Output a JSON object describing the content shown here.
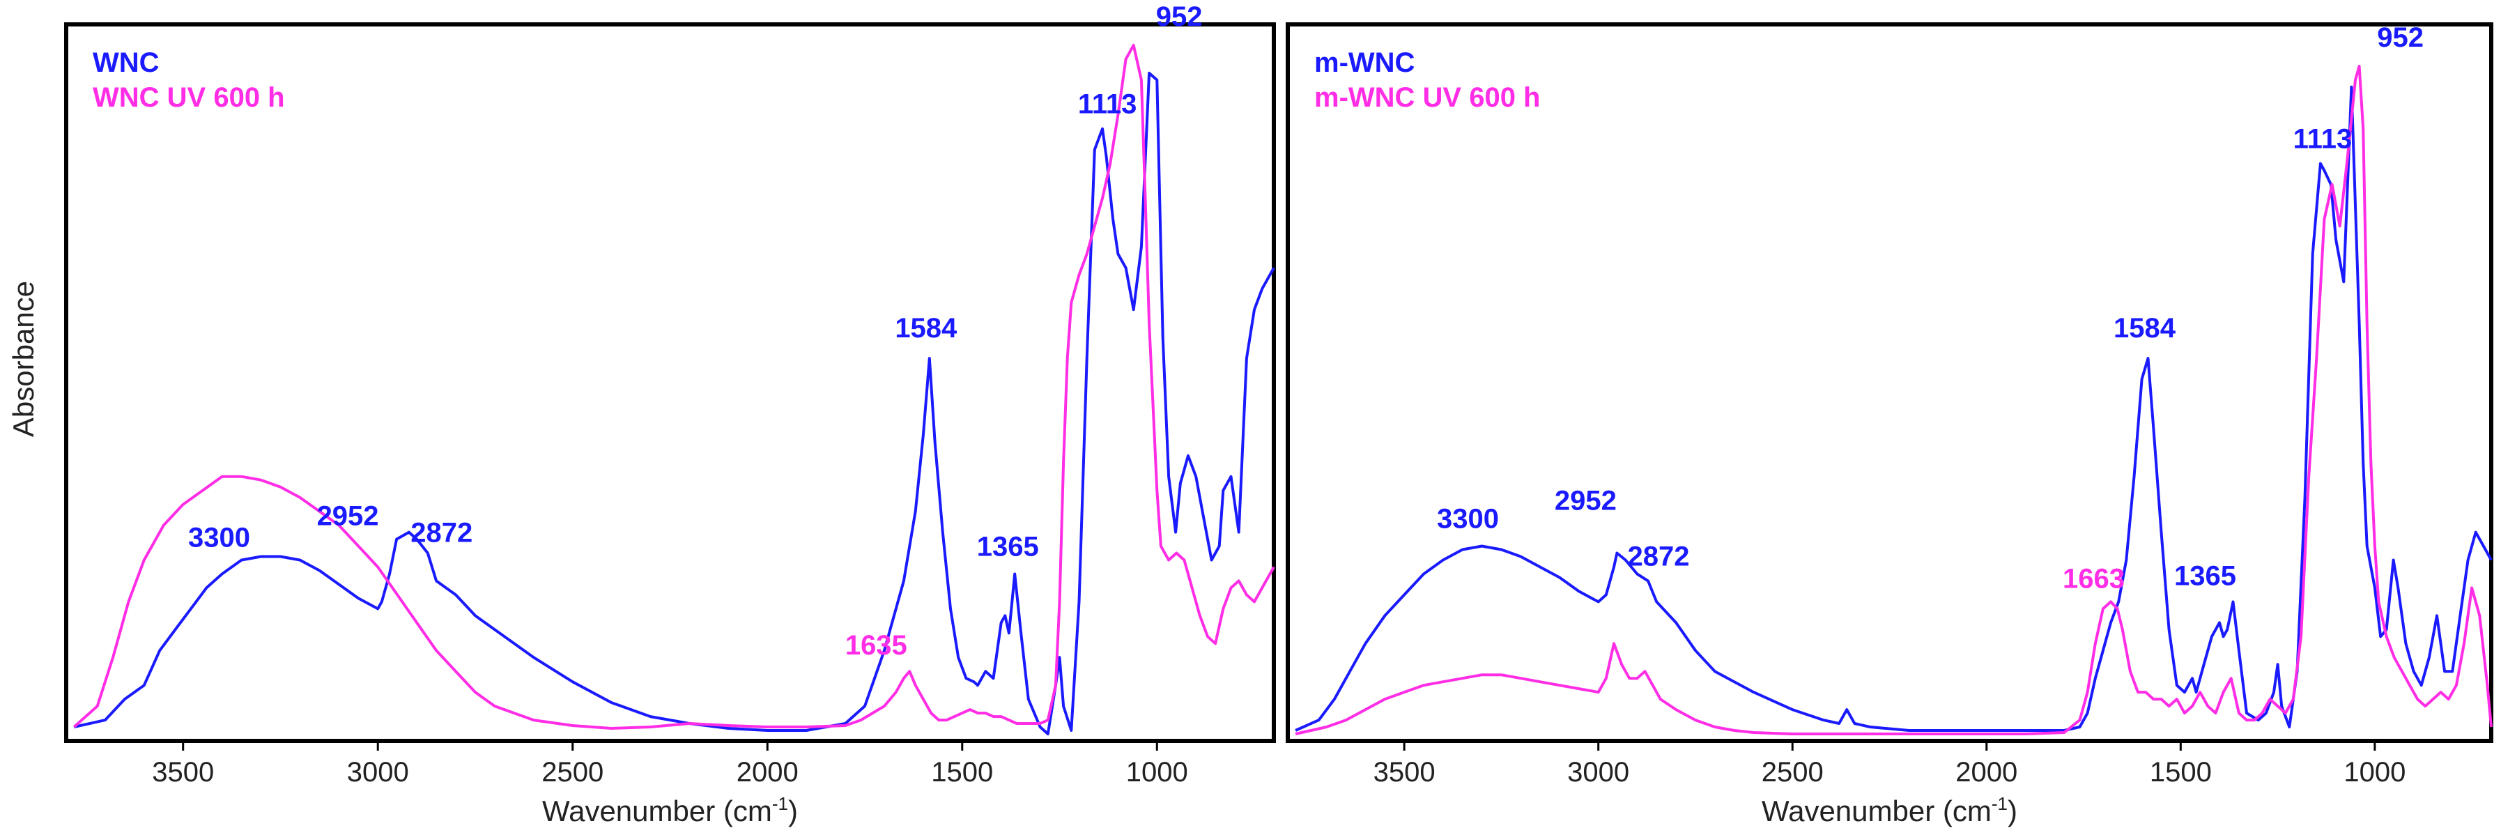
{
  "chart_data": [
    {
      "type": "line",
      "title": "",
      "xlabel": "Wavenumber (cm",
      "xlabel_sup": "-1",
      "xlabel_close": ")",
      "ylabel": "Absorbance",
      "xlim": [
        3800,
        700
      ],
      "ylim": [
        0,
        1.03
      ],
      "xticks": [
        3500,
        3000,
        2500,
        2000,
        1500,
        1000
      ],
      "xtick_labels": [
        "3500",
        "3000",
        "2500",
        "2000",
        "1500",
        "1000"
      ],
      "grid": false,
      "legend_position": "top-left",
      "series": [
        {
          "name": "WNC",
          "color": "#1a1aff",
          "x": [
            3780,
            3700,
            3650,
            3600,
            3560,
            3520,
            3480,
            3440,
            3400,
            3350,
            3300,
            3250,
            3200,
            3150,
            3100,
            3050,
            3000,
            2990,
            2970,
            2952,
            2920,
            2900,
            2872,
            2850,
            2800,
            2750,
            2700,
            2650,
            2600,
            2500,
            2400,
            2300,
            2200,
            2100,
            2000,
            1900,
            1800,
            1750,
            1700,
            1650,
            1620,
            1600,
            1584,
            1570,
            1550,
            1530,
            1510,
            1490,
            1470,
            1460,
            1440,
            1420,
            1400,
            1390,
            1380,
            1365,
            1350,
            1330,
            1300,
            1280,
            1260,
            1250,
            1240,
            1220,
            1200,
            1180,
            1160,
            1140,
            1130,
            1113,
            1100,
            1080,
            1060,
            1040,
            1020,
            1000,
            985,
            970,
            952,
            940,
            920,
            900,
            880,
            860,
            840,
            830,
            810,
            790,
            770,
            750,
            730,
            710,
            700
          ],
          "y": [
            0.02,
            0.03,
            0.06,
            0.08,
            0.13,
            0.16,
            0.19,
            0.22,
            0.24,
            0.26,
            0.265,
            0.265,
            0.26,
            0.245,
            0.225,
            0.205,
            0.19,
            0.2,
            0.24,
            0.29,
            0.3,
            0.29,
            0.27,
            0.23,
            0.21,
            0.18,
            0.16,
            0.14,
            0.12,
            0.085,
            0.055,
            0.035,
            0.025,
            0.018,
            0.015,
            0.015,
            0.025,
            0.05,
            0.13,
            0.23,
            0.33,
            0.44,
            0.55,
            0.43,
            0.3,
            0.19,
            0.12,
            0.09,
            0.085,
            0.08,
            0.1,
            0.09,
            0.17,
            0.18,
            0.155,
            0.24,
            0.16,
            0.06,
            0.02,
            0.01,
            0.08,
            0.12,
            0.05,
            0.015,
            0.2,
            0.55,
            0.85,
            0.88,
            0.84,
            0.75,
            0.7,
            0.68,
            0.62,
            0.71,
            0.96,
            0.95,
            0.58,
            0.38,
            0.3,
            0.37,
            0.41,
            0.38,
            0.32,
            0.26,
            0.28,
            0.36,
            0.38,
            0.3,
            0.55,
            0.62,
            0.65,
            0.67,
            0.68
          ]
        },
        {
          "name": "WNC UV 600 h",
          "color": "#ff2de5",
          "x": [
            3780,
            3720,
            3680,
            3640,
            3600,
            3550,
            3500,
            3450,
            3400,
            3350,
            3300,
            3250,
            3200,
            3150,
            3100,
            3050,
            3000,
            2950,
            2900,
            2850,
            2800,
            2750,
            2700,
            2600,
            2500,
            2400,
            2300,
            2200,
            2100,
            2000,
            1900,
            1800,
            1760,
            1730,
            1700,
            1670,
            1650,
            1635,
            1620,
            1600,
            1580,
            1560,
            1540,
            1520,
            1500,
            1480,
            1460,
            1440,
            1420,
            1400,
            1380,
            1360,
            1340,
            1320,
            1300,
            1280,
            1260,
            1250,
            1240,
            1230,
            1220,
            1200,
            1180,
            1160,
            1140,
            1120,
            1100,
            1080,
            1060,
            1040,
            1030,
            1020,
            1010,
            1000,
            990,
            970,
            950,
            930,
            910,
            890,
            870,
            850,
            830,
            810,
            790,
            770,
            750,
            730,
            710,
            700
          ],
          "y": [
            0.02,
            0.05,
            0.12,
            0.2,
            0.26,
            0.31,
            0.34,
            0.36,
            0.38,
            0.38,
            0.375,
            0.365,
            0.35,
            0.33,
            0.31,
            0.28,
            0.25,
            0.21,
            0.17,
            0.13,
            0.1,
            0.07,
            0.05,
            0.03,
            0.022,
            0.018,
            0.02,
            0.025,
            0.022,
            0.02,
            0.02,
            0.022,
            0.03,
            0.04,
            0.05,
            0.07,
            0.09,
            0.1,
            0.08,
            0.06,
            0.04,
            0.03,
            0.03,
            0.035,
            0.04,
            0.045,
            0.04,
            0.04,
            0.035,
            0.035,
            0.03,
            0.025,
            0.025,
            0.025,
            0.025,
            0.03,
            0.08,
            0.2,
            0.4,
            0.55,
            0.63,
            0.67,
            0.7,
            0.74,
            0.78,
            0.83,
            0.9,
            0.98,
            1.0,
            0.95,
            0.78,
            0.6,
            0.48,
            0.36,
            0.28,
            0.26,
            0.27,
            0.26,
            0.22,
            0.18,
            0.15,
            0.14,
            0.19,
            0.22,
            0.23,
            0.21,
            0.2,
            0.22,
            0.24,
            0.25
          ]
        }
      ],
      "annotations": [
        {
          "text": "3300",
          "x": 3300,
          "y": 0.265,
          "color": "#1a1aff"
        },
        {
          "text": "2952",
          "x": 2952,
          "y": 0.29,
          "color": "#1a1aff"
        },
        {
          "text": "2872",
          "x": 2872,
          "y": 0.27,
          "color": "#1a1aff"
        },
        {
          "text": "1584",
          "x": 1584,
          "y": 0.55,
          "color": "#1a1aff"
        },
        {
          "text": "1365",
          "x": 1365,
          "y": 0.24,
          "color": "#1a1aff"
        },
        {
          "text": "1635",
          "x": 1635,
          "y": 0.1,
          "color": "#ff2de5"
        },
        {
          "text": "1113",
          "x": 1113,
          "y": 0.88,
          "color": "#1a1aff"
        },
        {
          "text": "952",
          "x": 952,
          "y": 1.0,
          "color": "#1a1aff"
        }
      ]
    },
    {
      "type": "line",
      "title": "",
      "xlabel": "Wavenumber (cm",
      "xlabel_sup": "-1",
      "xlabel_close": ")",
      "ylabel": "",
      "xlim": [
        3800,
        700
      ],
      "ylim": [
        0,
        1.03
      ],
      "xticks": [
        3500,
        3000,
        2500,
        2000,
        1500,
        1000
      ],
      "xtick_labels": [
        "3500",
        "3000",
        "2500",
        "2000",
        "1500",
        "1000"
      ],
      "grid": false,
      "legend_position": "top-left",
      "series": [
        {
          "name": "m-WNC",
          "color": "#1a1aff",
          "x": [
            3780,
            3720,
            3680,
            3640,
            3600,
            3550,
            3500,
            3450,
            3400,
            3350,
            3300,
            3250,
            3200,
            3150,
            3100,
            3050,
            3000,
            2980,
            2960,
            2952,
            2930,
            2900,
            2872,
            2850,
            2800,
            2750,
            2700,
            2600,
            2500,
            2420,
            2380,
            2360,
            2340,
            2300,
            2200,
            2100,
            2000,
            1900,
            1800,
            1760,
            1740,
            1720,
            1700,
            1680,
            1660,
            1640,
            1620,
            1600,
            1584,
            1570,
            1550,
            1530,
            1510,
            1490,
            1470,
            1460,
            1440,
            1420,
            1400,
            1390,
            1380,
            1365,
            1350,
            1330,
            1300,
            1280,
            1260,
            1250,
            1240,
            1220,
            1200,
            1180,
            1160,
            1140,
            1130,
            1113,
            1100,
            1080,
            1060,
            1040,
            1030,
            1020,
            1000,
            985,
            970,
            952,
            940,
            920,
            900,
            880,
            860,
            840,
            820,
            800,
            780,
            760,
            740,
            720,
            700
          ],
          "y": [
            0.015,
            0.03,
            0.06,
            0.1,
            0.14,
            0.18,
            0.21,
            0.24,
            0.26,
            0.275,
            0.28,
            0.275,
            0.265,
            0.25,
            0.235,
            0.215,
            0.2,
            0.21,
            0.25,
            0.27,
            0.26,
            0.24,
            0.23,
            0.2,
            0.17,
            0.13,
            0.1,
            0.07,
            0.045,
            0.03,
            0.025,
            0.045,
            0.025,
            0.02,
            0.015,
            0.015,
            0.015,
            0.015,
            0.015,
            0.02,
            0.04,
            0.09,
            0.13,
            0.17,
            0.2,
            0.26,
            0.38,
            0.52,
            0.55,
            0.45,
            0.3,
            0.16,
            0.08,
            0.07,
            0.09,
            0.07,
            0.11,
            0.15,
            0.17,
            0.15,
            0.16,
            0.2,
            0.13,
            0.04,
            0.03,
            0.04,
            0.07,
            0.11,
            0.05,
            0.02,
            0.1,
            0.35,
            0.7,
            0.83,
            0.82,
            0.8,
            0.72,
            0.66,
            0.94,
            0.6,
            0.4,
            0.28,
            0.22,
            0.15,
            0.16,
            0.26,
            0.22,
            0.14,
            0.1,
            0.08,
            0.12,
            0.18,
            0.1,
            0.1,
            0.18,
            0.26,
            0.3,
            0.28,
            0.26
          ]
        },
        {
          "name": "m-WNC UV 600 h",
          "color": "#ff2de5",
          "x": [
            3780,
            3700,
            3650,
            3600,
            3550,
            3500,
            3450,
            3400,
            3350,
            3300,
            3250,
            3200,
            3150,
            3100,
            3050,
            3000,
            2980,
            2960,
            2940,
            2920,
            2900,
            2880,
            2860,
            2840,
            2800,
            2750,
            2700,
            2650,
            2600,
            2500,
            2400,
            2300,
            2200,
            2100,
            2000,
            1900,
            1800,
            1760,
            1740,
            1720,
            1700,
            1680,
            1663,
            1650,
            1630,
            1610,
            1590,
            1570,
            1550,
            1530,
            1510,
            1490,
            1470,
            1450,
            1430,
            1410,
            1390,
            1370,
            1350,
            1330,
            1310,
            1290,
            1270,
            1250,
            1230,
            1210,
            1190,
            1170,
            1150,
            1130,
            1110,
            1090,
            1070,
            1050,
            1040,
            1030,
            1020,
            1010,
            1000,
            990,
            970,
            950,
            930,
            910,
            890,
            870,
            850,
            830,
            810,
            790,
            770,
            750,
            730,
            710,
            700
          ],
          "y": [
            0.01,
            0.02,
            0.03,
            0.045,
            0.06,
            0.07,
            0.08,
            0.085,
            0.09,
            0.095,
            0.095,
            0.09,
            0.085,
            0.08,
            0.075,
            0.07,
            0.09,
            0.14,
            0.11,
            0.09,
            0.09,
            0.1,
            0.08,
            0.06,
            0.045,
            0.03,
            0.02,
            0.015,
            0.012,
            0.01,
            0.01,
            0.01,
            0.01,
            0.01,
            0.01,
            0.01,
            0.012,
            0.03,
            0.07,
            0.14,
            0.19,
            0.2,
            0.19,
            0.16,
            0.1,
            0.07,
            0.07,
            0.06,
            0.06,
            0.05,
            0.06,
            0.04,
            0.05,
            0.07,
            0.05,
            0.04,
            0.07,
            0.09,
            0.04,
            0.03,
            0.03,
            0.04,
            0.06,
            0.05,
            0.04,
            0.06,
            0.15,
            0.38,
            0.55,
            0.75,
            0.8,
            0.74,
            0.84,
            0.95,
            0.97,
            0.88,
            0.6,
            0.4,
            0.28,
            0.2,
            0.15,
            0.12,
            0.1,
            0.08,
            0.06,
            0.05,
            0.06,
            0.07,
            0.06,
            0.08,
            0.14,
            0.22,
            0.18,
            0.08,
            0.02
          ]
        }
      ],
      "annotations": [
        {
          "text": "3300",
          "x": 3300,
          "y": 0.28,
          "color": "#1a1aff"
        },
        {
          "text": "2952",
          "x": 2952,
          "y": 0.27,
          "color": "#1a1aff"
        },
        {
          "text": "2872",
          "x": 2872,
          "y": 0.23,
          "color": "#1a1aff"
        },
        {
          "text": "1663",
          "x": 1663,
          "y": 0.2,
          "color": "#ff2de5"
        },
        {
          "text": "1584",
          "x": 1584,
          "y": 0.55,
          "color": "#1a1aff"
        },
        {
          "text": "1365",
          "x": 1365,
          "y": 0.2,
          "color": "#1a1aff"
        },
        {
          "text": "1113",
          "x": 1113,
          "y": 0.83,
          "color": "#1a1aff"
        },
        {
          "text": "952",
          "x": 952,
          "y": 0.97,
          "color": "#1a1aff"
        }
      ]
    }
  ]
}
